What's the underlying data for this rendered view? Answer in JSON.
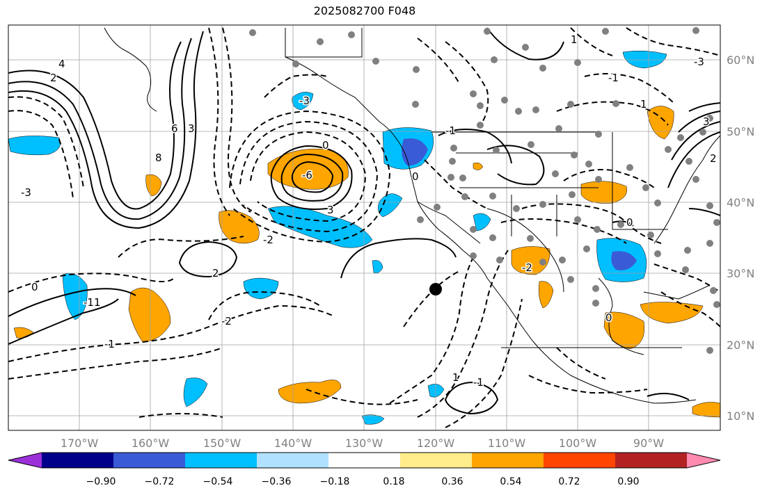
{
  "title": "2025082700 F048",
  "lat_labels": [
    "60°N",
    "50°N",
    "40°N",
    "30°N",
    "20°N",
    "10°N"
  ],
  "lon_labels": [
    "170°W",
    "160°W",
    "150°W",
    "140°W",
    "130°W",
    "120°W",
    "110°W",
    "100°W",
    "90°W"
  ],
  "colorbar": {
    "colors": [
      "#9b30d9",
      "#00008b",
      "#3a5bd6",
      "#00bfff",
      "#b0e2ff",
      "#ffffff",
      "#ffec8b",
      "#ffa500",
      "#ff4500",
      "#b22222",
      "#ff8ab0"
    ],
    "labels": [
      "−0.90",
      "−0.72",
      "−0.54",
      "−0.36",
      "−0.18",
      "0.18",
      "0.36",
      "0.54",
      "0.72",
      "0.90"
    ]
  },
  "contour_labels": [
    "4",
    "2",
    "6",
    "3",
    "8",
    "-3",
    "0",
    "-6",
    "-2",
    "-1",
    "1",
    "3",
    "-1",
    "0",
    "-2",
    "-3",
    "2",
    "0",
    "-1",
    "1",
    "-1",
    "-2",
    "-3",
    "1",
    "0",
    "-1",
    "3",
    "2",
    "1",
    "0"
  ]
}
